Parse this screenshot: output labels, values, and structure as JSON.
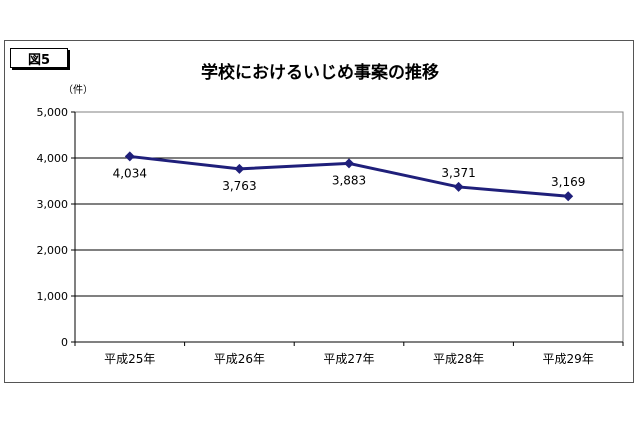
{
  "figure_label": "図5",
  "chart_data": {
    "type": "line",
    "title": "学校におけるいじめ事案の推移",
    "unit_label": "（件）",
    "categories": [
      "平成25年",
      "平成26年",
      "平成27年",
      "平成28年",
      "平成29年"
    ],
    "series": [
      {
        "values": [
          4034,
          3763,
          3883,
          3371,
          3169
        ],
        "labels": [
          "4,034",
          "3,763",
          "3,883",
          "3,371",
          "3,169"
        ]
      }
    ],
    "yticks": [
      "0",
      "1,000",
      "2,000",
      "3,000",
      "4,000",
      "5,000"
    ],
    "ytick_values": [
      0,
      1000,
      2000,
      3000,
      4000,
      5000
    ],
    "ylim": [
      0,
      5000
    ],
    "grid": true,
    "legend": "none",
    "line_color": "#1f1f7a"
  }
}
